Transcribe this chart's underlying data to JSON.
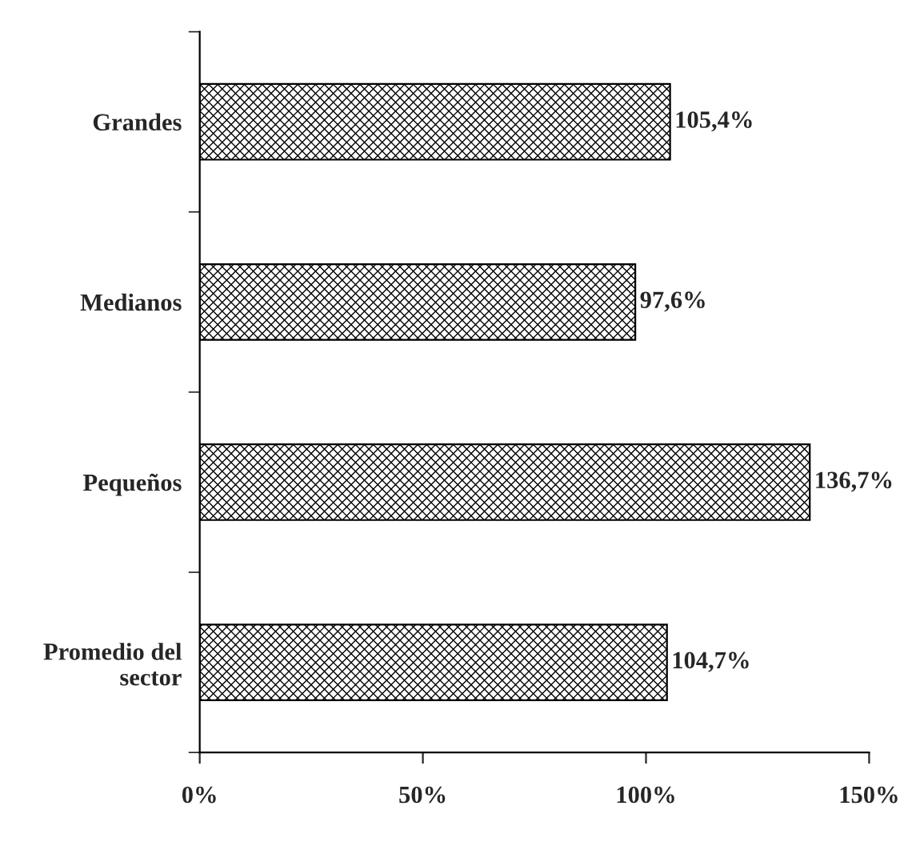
{
  "chart_data": {
    "type": "bar",
    "orientation": "horizontal",
    "categories": [
      "Grandes",
      "Medianos",
      "Pequeños",
      "Promedio del\nsector"
    ],
    "values": [
      105.4,
      97.6,
      136.7,
      104.7
    ],
    "value_labels": [
      "105,4%",
      "97,6%",
      "136,7%",
      "104,7%"
    ],
    "color": "#000000",
    "xlim": [
      0,
      150
    ],
    "xticks": [
      {
        "value": 0,
        "label": "0%"
      },
      {
        "value": 50,
        "label": "50%"
      },
      {
        "value": 100,
        "label": "100%"
      },
      {
        "value": 150,
        "label": "150%"
      }
    ],
    "grid": false,
    "legend": false
  }
}
